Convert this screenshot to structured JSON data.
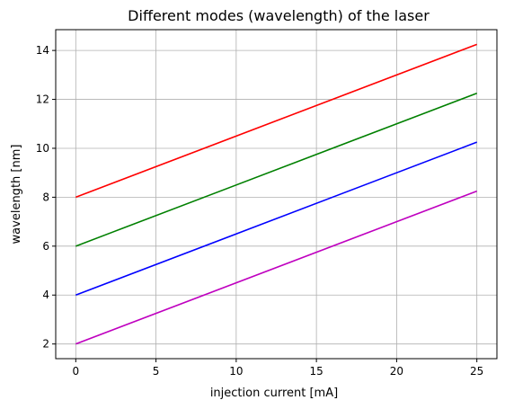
{
  "chart_data": {
    "type": "line",
    "title": "Different modes (wavelength) of the laser",
    "xlabel": "injection current [mA]",
    "ylabel": "wavelength [nm]",
    "xlim": [
      -1.25,
      26.25
    ],
    "ylim": [
      1.4,
      14.85
    ],
    "xticks": [
      0,
      5,
      10,
      15,
      20,
      25
    ],
    "yticks": [
      2,
      4,
      6,
      8,
      10,
      12,
      14
    ],
    "grid": true,
    "series": [
      {
        "color": "#ff0000",
        "x": [
          0,
          25
        ],
        "y": [
          8,
          14.25
        ]
      },
      {
        "color": "#008000",
        "x": [
          0,
          25
        ],
        "y": [
          6,
          12.25
        ]
      },
      {
        "color": "#0000ff",
        "x": [
          0,
          25
        ],
        "y": [
          4,
          10.25
        ]
      },
      {
        "color": "#bf00bf",
        "x": [
          0,
          25
        ],
        "y": [
          2,
          8.25
        ]
      }
    ]
  }
}
